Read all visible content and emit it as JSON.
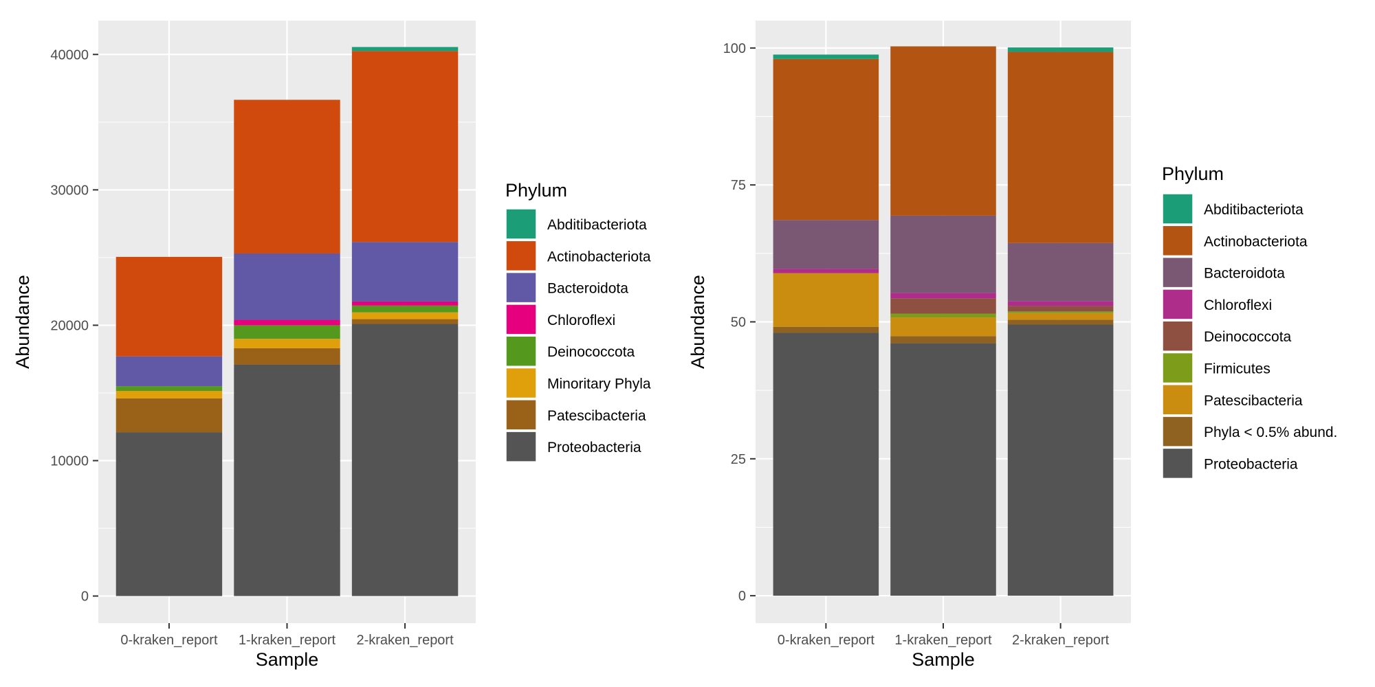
{
  "chart_data": [
    {
      "type": "bar",
      "stacked": true,
      "xlabel": "Sample",
      "ylabel": "Abundance",
      "ylim": [
        -2000,
        42500
      ],
      "yticks": [
        0,
        10000,
        20000,
        30000,
        40000
      ],
      "grid": true,
      "legend_title": "Phylum",
      "legend_position": "right",
      "categories": [
        "0-kraken_report",
        "1-kraken_report",
        "2-kraken_report"
      ],
      "series": [
        {
          "name": "Abditibacteriota",
          "color": "#1b9e77",
          "values": [
            0,
            0,
            300
          ]
        },
        {
          "name": "Actinobacteriota",
          "color": "#d04a0d",
          "values": [
            7350,
            11350,
            14100
          ]
        },
        {
          "name": "Bacteroidota",
          "color": "#6159a6",
          "values": [
            2200,
            4900,
            4400
          ]
        },
        {
          "name": "Chloroflexi",
          "color": "#e7007e",
          "values": [
            0,
            400,
            300
          ]
        },
        {
          "name": "Deinococcota",
          "color": "#55981e",
          "values": [
            350,
            1000,
            500
          ]
        },
        {
          "name": "Minoritary Phyla",
          "color": "#e0a00c",
          "values": [
            550,
            700,
            500
          ]
        },
        {
          "name": "Patescibacteria",
          "color": "#996218",
          "values": [
            2500,
            1200,
            350
          ]
        },
        {
          "name": "Proteobacteria",
          "color": "#545454",
          "values": [
            12100,
            17100,
            20100
          ]
        }
      ]
    },
    {
      "type": "bar",
      "stacked": true,
      "xlabel": "Sample",
      "ylabel": "Abundance",
      "ylim": [
        -5,
        105
      ],
      "yticks": [
        0,
        25,
        50,
        75,
        100
      ],
      "grid": true,
      "legend_title": "Phylum",
      "legend_position": "right",
      "categories": [
        "0-kraken_report",
        "1-kraken_report",
        "2-kraken_report"
      ],
      "series": [
        {
          "name": "Abditibacteriota",
          "color": "#1b9e77",
          "values": [
            0.8,
            0,
            0.8
          ]
        },
        {
          "name": "Actinobacteriota",
          "color": "#b35412",
          "values": [
            29.4,
            30.9,
            34.9
          ]
        },
        {
          "name": "Bacteroidota",
          "color": "#7a5773",
          "values": [
            8.9,
            14.1,
            10.6
          ]
        },
        {
          "name": "Chloroflexi",
          "color": "#ae2d8a",
          "values": [
            0.8,
            1.0,
            0.9
          ]
        },
        {
          "name": "Deinococcota",
          "color": "#8e5141",
          "values": [
            0,
            2.8,
            1.0
          ]
        },
        {
          "name": "Firmicutes",
          "color": "#7d9d1a",
          "values": [
            0,
            0.7,
            0.3
          ]
        },
        {
          "name": "Patescibacteria",
          "color": "#ca8d10",
          "values": [
            9.8,
            3.4,
            1.2
          ]
        },
        {
          "name": "Phyla < 0.5% abund.",
          "color": "#8f6222",
          "values": [
            1.1,
            1.3,
            0.9
          ]
        },
        {
          "name": "Proteobacteria",
          "color": "#545454",
          "values": [
            48.0,
            46.1,
            49.5
          ]
        }
      ]
    }
  ]
}
